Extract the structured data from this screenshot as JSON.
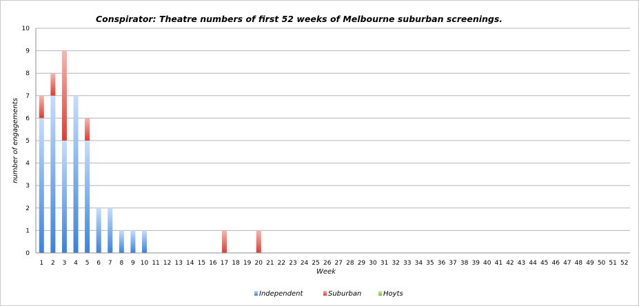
{
  "chart_data": {
    "type": "bar",
    "stacked": true,
    "title": "Conspirator: Theatre numbers of first 52 weeks of Melbourne suburban screenings.",
    "xlabel": "Week",
    "ylabel": "number of engagements",
    "ylim": [
      0,
      10
    ],
    "yticks": [
      0,
      1,
      2,
      3,
      4,
      5,
      6,
      7,
      8,
      9,
      10
    ],
    "grid": true,
    "legend_position": "bottom",
    "categories": [
      "1",
      "2",
      "3",
      "4",
      "5",
      "6",
      "7",
      "8",
      "9",
      "10",
      "11",
      "12",
      "13",
      "14",
      "15",
      "16",
      "17",
      "18",
      "19",
      "20",
      "21",
      "22",
      "23",
      "24",
      "25",
      "26",
      "27",
      "28",
      "29",
      "30",
      "31",
      "32",
      "33",
      "34",
      "35",
      "36",
      "37",
      "38",
      "39",
      "40",
      "41",
      "42",
      "43",
      "44",
      "45",
      "46",
      "47",
      "48",
      "49",
      "50",
      "51",
      "52"
    ],
    "series": [
      {
        "name": "Independent",
        "color": "#4a90e2",
        "values": [
          6,
          7,
          5,
          7,
          5,
          2,
          2,
          1,
          1,
          1,
          0,
          0,
          0,
          0,
          0,
          0,
          0,
          0,
          0,
          0,
          0,
          0,
          0,
          0,
          0,
          0,
          0,
          0,
          0,
          0,
          0,
          0,
          0,
          0,
          0,
          0,
          0,
          0,
          0,
          0,
          0,
          0,
          0,
          0,
          0,
          0,
          0,
          0,
          0,
          0,
          0,
          0
        ]
      },
      {
        "name": "Suburban",
        "color": "#e8504a",
        "values": [
          1,
          1,
          4,
          0,
          1,
          0,
          0,
          0,
          0,
          0,
          0,
          0,
          0,
          0,
          0,
          0,
          1,
          0,
          0,
          1,
          0,
          0,
          0,
          0,
          0,
          0,
          0,
          0,
          0,
          0,
          0,
          0,
          0,
          0,
          0,
          0,
          0,
          0,
          0,
          0,
          0,
          0,
          0,
          0,
          0,
          0,
          0,
          0,
          0,
          0,
          0,
          0
        ]
      },
      {
        "name": "Hoyts",
        "color": "#8fd14f",
        "values": [
          0,
          0,
          0,
          0,
          0,
          0,
          0,
          0,
          0,
          0,
          0,
          0,
          0,
          0,
          0,
          0,
          0,
          0,
          0,
          0,
          0,
          0,
          0,
          0,
          0,
          0,
          0,
          0,
          0,
          0,
          0,
          0,
          0,
          0,
          0,
          0,
          0,
          0,
          0,
          0,
          0,
          0,
          0,
          0,
          0,
          0,
          0,
          0,
          0,
          0,
          0,
          0
        ]
      }
    ]
  }
}
